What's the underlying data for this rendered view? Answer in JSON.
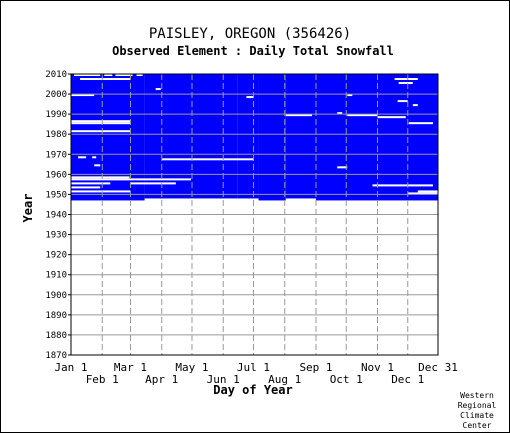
{
  "chart_data": {
    "type": "heatmap",
    "title": "PAISLEY, OREGON   (356426)",
    "subtitle": "Observed Element : Daily Total Snowfall",
    "xlabel": "Day of Year",
    "ylabel": "Year",
    "x_ticks_top": [
      "Jan 1",
      "Mar 1",
      "May 1",
      "Jul 1",
      "Sep 1",
      "Nov 1",
      "Dec 31"
    ],
    "x_ticks_bottom": [
      "Feb 1",
      "Apr 1",
      "Jun 1",
      "Aug 1",
      "Oct 1",
      "Dec 1"
    ],
    "y_ticks": [
      "2010",
      "2000",
      "1990",
      "1980",
      "1970",
      "1960",
      "1950",
      "1940",
      "1930",
      "1920",
      "1910",
      "1900",
      "1890",
      "1880",
      "1870"
    ],
    "ylim": [
      1870,
      2010
    ],
    "xlim": [
      1,
      365
    ],
    "data_color": "#0000ff",
    "background_color": "#ffffff",
    "grid": true,
    "record_start_year": 1947,
    "record_end_year": 2010,
    "data_coverage_start_doy": [
      1,
      1,
      1,
      1,
      1,
      1,
      1,
      1,
      1,
      1,
      1,
      1,
      1,
      1
    ],
    "missing_segments": [
      {
        "year": 2009,
        "start_doy": 4,
        "end_doy": 30
      },
      {
        "year": 2009,
        "start_doy": 34,
        "end_doy": 42
      },
      {
        "year": 2009,
        "start_doy": 45,
        "end_doy": 62
      },
      {
        "year": 2009,
        "start_doy": 66,
        "end_doy": 72
      },
      {
        "year": 2007,
        "start_doy": 10,
        "end_doy": 60
      },
      {
        "year": 2007,
        "start_doy": 322,
        "end_doy": 345
      },
      {
        "year": 2005,
        "start_doy": 326,
        "end_doy": 340
      },
      {
        "year": 2002,
        "start_doy": 85,
        "end_doy": 90
      },
      {
        "year": 1999,
        "start_doy": 1,
        "end_doy": 24
      },
      {
        "year": 1999,
        "start_doy": 275,
        "end_doy": 280
      },
      {
        "year": 1998,
        "start_doy": 175,
        "end_doy": 182
      },
      {
        "year": 1996,
        "start_doy": 325,
        "end_doy": 335
      },
      {
        "year": 1994,
        "start_doy": 340,
        "end_doy": 345
      },
      {
        "year": 1990,
        "start_doy": 265,
        "end_doy": 270
      },
      {
        "year": 1989,
        "start_doy": 214,
        "end_doy": 240
      },
      {
        "year": 1989,
        "start_doy": 275,
        "end_doy": 305
      },
      {
        "year": 1988,
        "start_doy": 305,
        "end_doy": 333
      },
      {
        "year": 1986,
        "start_doy": 1,
        "end_doy": 60
      },
      {
        "year": 1985,
        "start_doy": 1,
        "end_doy": 60
      },
      {
        "year": 1985,
        "start_doy": 336,
        "end_doy": 360
      },
      {
        "year": 1981,
        "start_doy": 1,
        "end_doy": 60
      },
      {
        "year": 1968,
        "start_doy": 8,
        "end_doy": 16
      },
      {
        "year": 1968,
        "start_doy": 22,
        "end_doy": 26
      },
      {
        "year": 1967,
        "start_doy": 91,
        "end_doy": 182
      },
      {
        "year": 1964,
        "start_doy": 24,
        "end_doy": 30
      },
      {
        "year": 1963,
        "start_doy": 265,
        "end_doy": 275
      },
      {
        "year": 1958,
        "start_doy": 1,
        "end_doy": 59
      },
      {
        "year": 1957,
        "start_doy": 1,
        "end_doy": 120
      },
      {
        "year": 1955,
        "start_doy": 1,
        "end_doy": 40
      },
      {
        "year": 1955,
        "start_doy": 60,
        "end_doy": 105
      },
      {
        "year": 1954,
        "start_doy": 300,
        "end_doy": 360
      },
      {
        "year": 1953,
        "start_doy": 1,
        "end_doy": 30
      },
      {
        "year": 1951,
        "start_doy": 1,
        "end_doy": 60
      },
      {
        "year": 1951,
        "start_doy": 345,
        "end_doy": 365
      },
      {
        "year": 1950,
        "start_doy": 335,
        "end_doy": 365
      }
    ],
    "bottom_edge_years": [
      {
        "start_doy": 1,
        "end_doy": 74,
        "year": 1947
      },
      {
        "start_doy": 74,
        "end_doy": 166,
        "year": 1948
      },
      {
        "start_doy": 166,
        "end_doy": 187,
        "year": 1948
      },
      {
        "start_doy": 187,
        "end_doy": 214,
        "year": 1947
      },
      {
        "start_doy": 214,
        "end_doy": 244,
        "year": 1948
      },
      {
        "start_doy": 244,
        "end_doy": 365,
        "year": 1947
      }
    ]
  },
  "credit": [
    "Western",
    "Regional",
    "Climate",
    "Center"
  ]
}
